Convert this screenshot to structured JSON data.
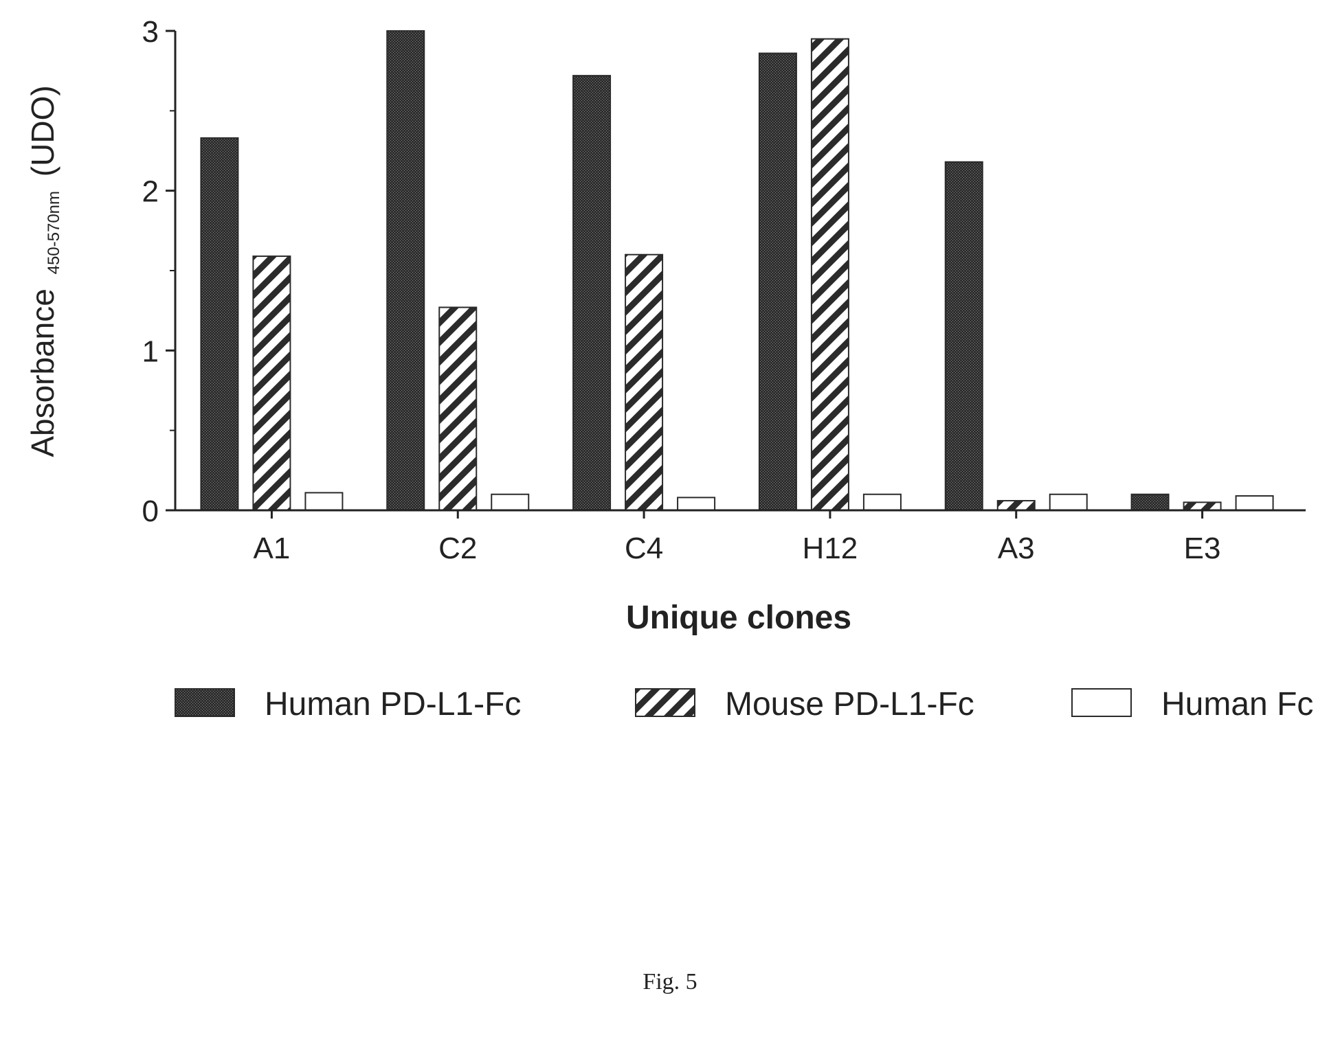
{
  "figure": {
    "caption": "Fig. 5"
  },
  "chart_data": {
    "type": "bar",
    "title": "",
    "xlabel": "Unique clones",
    "ylabel": {
      "main": "Absorbance",
      "subscript": "450-570nm",
      "unit": "(UDO)"
    },
    "categories": [
      "A1",
      "C2",
      "C4",
      "H12",
      "A3",
      "E3"
    ],
    "ylim": [
      0,
      3
    ],
    "yticks": [
      "0",
      "1",
      "2",
      "3"
    ],
    "series": [
      {
        "name": "Human PD-L1-Fc",
        "pattern": "solid-dark",
        "color": "#3a3a3a",
        "values": [
          2.33,
          3.0,
          2.72,
          2.86,
          2.18,
          0.1
        ]
      },
      {
        "name": "Mouse PD-L1-Fc",
        "pattern": "diagonal-hatch",
        "color": "#333333",
        "values": [
          1.59,
          1.27,
          1.6,
          2.95,
          0.06,
          0.05
        ]
      },
      {
        "name": "Human Fc",
        "pattern": "open",
        "color": "#ffffff",
        "values": [
          0.11,
          0.1,
          0.08,
          0.1,
          0.1,
          0.09
        ]
      }
    ],
    "grid": false,
    "legend_position": "bottom"
  }
}
